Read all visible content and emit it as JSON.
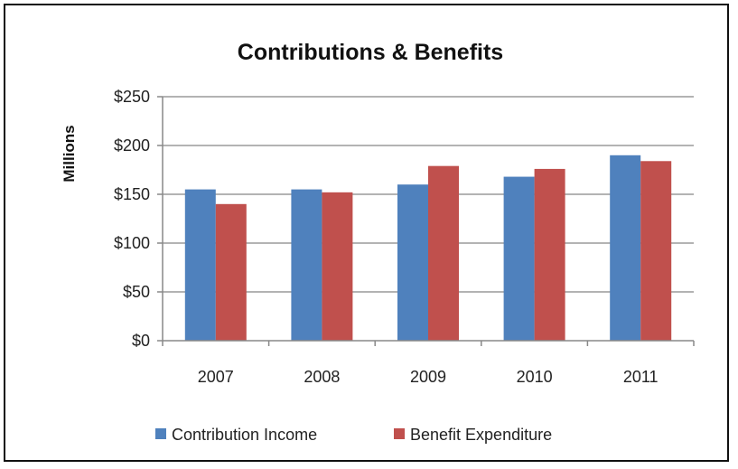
{
  "chart_data": {
    "type": "bar",
    "title": "Contributions & Benefits",
    "xlabel": "",
    "ylabel": "Millions",
    "categories": [
      "2007",
      "2008",
      "2009",
      "2010",
      "2011"
    ],
    "series": [
      {
        "name": "Contribution Income",
        "color": "#4f81bd",
        "values": [
          155,
          155,
          160,
          168,
          190
        ]
      },
      {
        "name": "Benefit Expenditure",
        "color": "#c0504d",
        "values": [
          140,
          152,
          179,
          176,
          184
        ]
      }
    ],
    "ylim": [
      0,
      250
    ],
    "yticks": [
      "$0",
      "$50",
      "$100",
      "$150",
      "$200",
      "$250"
    ],
    "grid": true,
    "legend_position": "bottom"
  }
}
